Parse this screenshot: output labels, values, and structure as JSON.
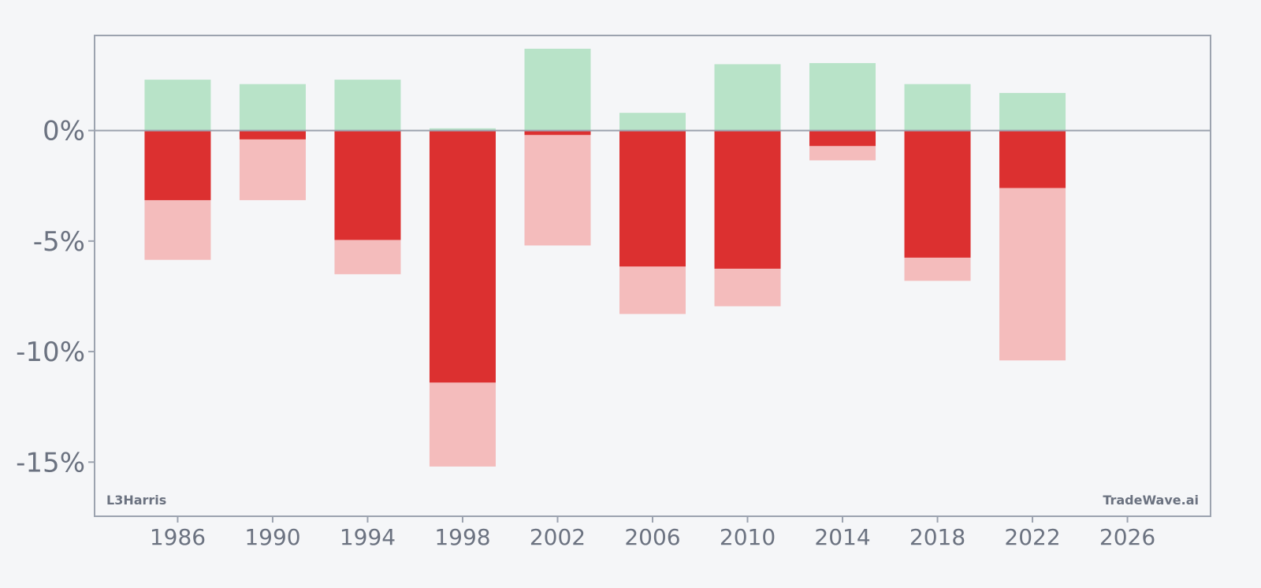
{
  "chart_data": {
    "type": "bar",
    "subtype": "stacked-range",
    "x": [
      1986,
      1990,
      1994,
      1998,
      2002,
      2006,
      2010,
      2014,
      2018,
      2022
    ],
    "series": [
      {
        "role": "upper-range",
        "color": "#b8e3c8",
        "values": [
          2.3,
          2.1,
          2.3,
          0.1,
          3.7,
          0.8,
          3.0,
          3.05,
          2.1,
          1.7
        ]
      },
      {
        "role": "lower-inner",
        "color": "#dc3030",
        "values": [
          -3.15,
          -0.4,
          -4.95,
          -11.4,
          -0.2,
          -6.15,
          -6.25,
          -0.7,
          -5.75,
          -2.6
        ]
      },
      {
        "role": "lower-outer",
        "color": "#f4bcbc",
        "values": [
          -5.85,
          -3.15,
          -6.5,
          -15.2,
          -5.2,
          -8.3,
          -7.95,
          -1.35,
          -6.8,
          -10.4
        ]
      }
    ],
    "x_ticks": [
      1986,
      1990,
      1994,
      1998,
      2002,
      2006,
      2010,
      2014,
      2018,
      2022,
      2026
    ],
    "x_tick_labels": [
      "1986",
      "1990",
      "1994",
      "1998",
      "2002",
      "2006",
      "2010",
      "2014",
      "2018",
      "2022",
      "2026"
    ],
    "y_ticks": [
      0,
      -5,
      -10,
      -15
    ],
    "y_tick_labels": [
      "0%",
      "-5%",
      "-10%",
      "-15%"
    ],
    "xlim": [
      1982.5,
      2029.5
    ],
    "ylim": [
      -17.45,
      4.3
    ],
    "grid": false,
    "zero_line": true,
    "axis_color": "#9ca3af",
    "text_color": "#6b7280"
  },
  "watermarks": {
    "left": "L3Harris",
    "right": "TradeWave.ai"
  }
}
